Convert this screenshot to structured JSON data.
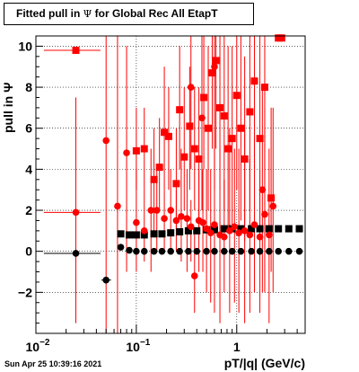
{
  "title": {
    "prefix": "Fitted pull in ",
    "symbol": "Ψ",
    "suffix": " for Global Rec All EtapT"
  },
  "timestamp": "Sun Apr 25 10:39:16 2021",
  "colors": {
    "black_series": "#000000",
    "red_series": "#ff0000",
    "frame": "#000000",
    "grid": "#000000"
  },
  "chart_data": {
    "type": "scatter",
    "title": "Fitted pull in Ψ for Global Rec All EtapT",
    "xlabel": "pT/|q| (GeV/c)",
    "ylabel": "pull in Ψ",
    "xscale": "log",
    "xlim": [
      0.01,
      4.8
    ],
    "ylim": [
      -4,
      10.5
    ],
    "grid": true,
    "x_ticks": [
      {
        "value": 0.01,
        "base": "10",
        "exp": "-2"
      },
      {
        "value": 0.1,
        "base": "10",
        "exp": "-1"
      },
      {
        "value": 1,
        "base": "1",
        "exp": ""
      }
    ],
    "y_ticks": [
      -2,
      0,
      2,
      4,
      6,
      8,
      10
    ],
    "series": [
      {
        "marker": "circle",
        "color": "#000000",
        "points": [
          {
            "x": 0.025,
            "y": -0.1,
            "ex": [
              0.012,
              0.044
            ]
          },
          {
            "x": 0.05,
            "y": -1.4,
            "ex": [
              0.045,
              0.056
            ]
          },
          {
            "x": 0.07,
            "y": 0.2
          },
          {
            "x": 0.085,
            "y": 0.05
          },
          {
            "x": 0.1,
            "y": 0.0
          },
          {
            "x": 0.12,
            "y": 0.0
          },
          {
            "x": 0.15,
            "y": 0.0
          },
          {
            "x": 0.18,
            "y": 0.0
          },
          {
            "x": 0.22,
            "y": 0.0
          },
          {
            "x": 0.27,
            "y": 0.0
          },
          {
            "x": 0.33,
            "y": 0.0
          },
          {
            "x": 0.4,
            "y": 0.0
          },
          {
            "x": 0.5,
            "y": 0.0
          },
          {
            "x": 0.6,
            "y": 0.0
          },
          {
            "x": 0.75,
            "y": 0.0
          },
          {
            "x": 0.9,
            "y": 0.0
          },
          {
            "x": 1.1,
            "y": 0.0
          },
          {
            "x": 1.4,
            "y": 0.0
          },
          {
            "x": 1.7,
            "y": 0.0
          },
          {
            "x": 2.1,
            "y": 0.0
          },
          {
            "x": 2.6,
            "y": 0.0
          },
          {
            "x": 3.3,
            "y": 0.0
          },
          {
            "x": 4.2,
            "y": 0.0
          }
        ]
      },
      {
        "marker": "square",
        "color": "#000000",
        "points": [
          {
            "x": 0.07,
            "y": 0.85
          },
          {
            "x": 0.085,
            "y": 0.8
          },
          {
            "x": 0.1,
            "y": 0.8
          },
          {
            "x": 0.12,
            "y": 0.8
          },
          {
            "x": 0.15,
            "y": 0.85
          },
          {
            "x": 0.18,
            "y": 0.85
          },
          {
            "x": 0.22,
            "y": 0.9
          },
          {
            "x": 0.27,
            "y": 0.95
          },
          {
            "x": 0.33,
            "y": 1.0
          },
          {
            "x": 0.4,
            "y": 1.0
          },
          {
            "x": 0.5,
            "y": 1.05
          },
          {
            "x": 0.6,
            "y": 1.05
          },
          {
            "x": 0.75,
            "y": 1.1
          },
          {
            "x": 0.9,
            "y": 1.1
          },
          {
            "x": 1.1,
            "y": 1.1
          },
          {
            "x": 1.4,
            "y": 1.1
          },
          {
            "x": 1.7,
            "y": 1.1
          },
          {
            "x": 2.1,
            "y": 1.1
          },
          {
            "x": 2.6,
            "y": 1.1
          },
          {
            "x": 3.3,
            "y": 1.1
          },
          {
            "x": 4.2,
            "y": 1.1
          }
        ]
      },
      {
        "marker": "circle",
        "color": "#ff0000",
        "points": [
          {
            "x": 0.025,
            "y": 1.9,
            "ey": [
              -3.5,
              7.5
            ],
            "ex": [
              0.012,
              0.044
            ]
          },
          {
            "x": 0.05,
            "y": 5.4,
            "ey": [
              -4.0,
              10.5
            ]
          },
          {
            "x": 0.065,
            "y": 2.2,
            "ey": [
              -4.0,
              10.5
            ]
          },
          {
            "x": 0.08,
            "y": 4.8,
            "ey": [
              -1.0,
              10.0
            ]
          },
          {
            "x": 0.1,
            "y": 1.4,
            "ey": [
              -1.0,
              4.0
            ]
          },
          {
            "x": 0.12,
            "y": 1.0,
            "ey": [
              -0.5,
              3.0
            ]
          },
          {
            "x": 0.14,
            "y": 2.0,
            "ey": [
              -1.0,
              5.0
            ]
          },
          {
            "x": 0.16,
            "y": 2.0,
            "ey": [
              0.0,
              4.0
            ]
          },
          {
            "x": 0.19,
            "y": 1.6,
            "ey": [
              0.0,
              3.0
            ]
          },
          {
            "x": 0.22,
            "y": 2.0,
            "ey": [
              0.0,
              4.0
            ]
          },
          {
            "x": 0.25,
            "y": 1.5,
            "ey": [
              0.0,
              3.0
            ]
          },
          {
            "x": 0.28,
            "y": 1.7,
            "ey": [
              -0.5,
              5.0
            ]
          },
          {
            "x": 0.32,
            "y": 1.6,
            "ey": [
              -1.0,
              4.0
            ]
          },
          {
            "x": 0.35,
            "y": 1.2,
            "ey": [
              -0.5,
              2.5
            ]
          },
          {
            "x": 0.38,
            "y": -1.2,
            "ey": [
              -3.0,
              1.0
            ]
          },
          {
            "x": 0.42,
            "y": 1.5,
            "ey": [
              -1.0,
              4.0
            ]
          },
          {
            "x": 0.46,
            "y": 1.4,
            "ey": [
              -1.0,
              4.0
            ]
          },
          {
            "x": 0.5,
            "y": 1.1,
            "ey": [
              -2.0,
              4.0
            ]
          },
          {
            "x": 0.55,
            "y": 0.9,
            "ey": [
              -2.5,
              4.0
            ]
          },
          {
            "x": 0.6,
            "y": 1.3,
            "ey": [
              -3.0,
              6.0
            ]
          },
          {
            "x": 0.68,
            "y": 0.8,
            "ey": [
              -3.5,
              5.0
            ]
          },
          {
            "x": 0.75,
            "y": 0.7,
            "ey": [
              -2.0,
              3.5
            ]
          },
          {
            "x": 0.85,
            "y": 1.0,
            "ey": [
              -3.0,
              6.0
            ]
          },
          {
            "x": 0.95,
            "y": 1.2,
            "ey": [
              -2.5,
              5.0
            ]
          },
          {
            "x": 1.05,
            "y": 0.9,
            "ey": [
              -3.0,
              5.0
            ]
          },
          {
            "x": 1.2,
            "y": 1.0,
            "ey": [
              -3.5,
              6.0
            ]
          },
          {
            "x": 1.35,
            "y": 0.8,
            "ey": [
              -3.0,
              4.5
            ]
          },
          {
            "x": 1.5,
            "y": 1.3,
            "ey": [
              -2.0,
              5.5
            ]
          },
          {
            "x": 1.7,
            "y": 0.7,
            "ey": [
              -3.0,
              4.0
            ]
          },
          {
            "x": 1.9,
            "y": 1.8,
            "ey": [
              -2.0,
              6.0
            ]
          },
          {
            "x": 2.1,
            "y": 0.8,
            "ey": [
              -3.5,
              5.0
            ]
          },
          {
            "x": 2.3,
            "y": 2.2,
            "ey": [
              -2.0,
              7.0
            ]
          },
          {
            "x": 0.35,
            "y": 8.0,
            "ey": [
              4.0,
              10.5
            ]
          },
          {
            "x": 0.6,
            "y": 9.0,
            "ey": [
              3.0,
              10.5
            ]
          },
          {
            "x": 0.45,
            "y": 6.5,
            "ey": [
              2.0,
              10.5
            ]
          },
          {
            "x": 1.8,
            "y": 3.0,
            "ey": [
              -2.0,
              8.0
            ]
          }
        ]
      },
      {
        "marker": "square",
        "color": "#ff0000",
        "points": [
          {
            "x": 0.025,
            "y": 9.8,
            "ex": [
              0.012,
              0.044
            ]
          },
          {
            "x": 0.1,
            "y": 4.9,
            "ey": [
              3.0,
              7.0
            ]
          },
          {
            "x": 0.12,
            "y": 5.0,
            "ey": [
              3.0,
              7.0
            ]
          },
          {
            "x": 0.15,
            "y": 3.5,
            "ey": [
              1.0,
              6.0
            ]
          },
          {
            "x": 0.17,
            "y": 4.1,
            "ey": [
              2.0,
              6.5
            ]
          },
          {
            "x": 0.19,
            "y": 5.8,
            "ey": [
              3.0,
              9.0
            ]
          },
          {
            "x": 0.21,
            "y": 5.6,
            "ey": [
              3.0,
              8.0
            ]
          },
          {
            "x": 0.25,
            "y": 3.3,
            "ey": [
              1.0,
              6.0
            ]
          },
          {
            "x": 0.27,
            "y": 6.9,
            "ey": [
              4.0,
              10.0
            ]
          },
          {
            "x": 0.3,
            "y": 4.6,
            "ey": [
              2.0,
              8.0
            ]
          },
          {
            "x": 0.34,
            "y": 6.1,
            "ey": [
              3.0,
              9.0
            ]
          },
          {
            "x": 0.38,
            "y": 5.0,
            "ey": [
              2.0,
              8.0
            ]
          },
          {
            "x": 0.42,
            "y": 4.5,
            "ey": [
              1.0,
              8.0
            ]
          },
          {
            "x": 0.47,
            "y": 7.5,
            "ey": [
              4.0,
              10.5
            ]
          },
          {
            "x": 0.52,
            "y": 6.0,
            "ey": [
              2.0,
              10.0
            ]
          },
          {
            "x": 0.57,
            "y": 8.7,
            "ey": [
              5.0,
              10.5
            ]
          },
          {
            "x": 0.62,
            "y": 9.3,
            "ey": [
              5.0,
              10.5
            ]
          },
          {
            "x": 0.68,
            "y": 7.0,
            "ey": [
              3.0,
              10.5
            ]
          },
          {
            "x": 0.75,
            "y": 6.6,
            "ey": [
              2.0,
              10.5
            ]
          },
          {
            "x": 0.82,
            "y": 5.0,
            "ey": [
              1.0,
              10.0
            ]
          },
          {
            "x": 0.9,
            "y": 5.5,
            "ey": [
              1.0,
              10.0
            ]
          },
          {
            "x": 1.0,
            "y": 7.6,
            "ey": [
              3.0,
              10.5
            ]
          },
          {
            "x": 1.1,
            "y": 6.0,
            "ey": [
              1.5,
              10.5
            ]
          },
          {
            "x": 1.2,
            "y": 4.5,
            "ey": [
              0.5,
              9.5
            ]
          },
          {
            "x": 1.35,
            "y": 6.8,
            "ey": [
              2.0,
              10.5
            ]
          },
          {
            "x": 1.5,
            "y": 8.3,
            "ey": [
              4.0,
              10.5
            ]
          },
          {
            "x": 1.7,
            "y": 5.5,
            "ey": [
              1.0,
              10.5
            ]
          },
          {
            "x": 1.9,
            "y": 8.0,
            "ey": [
              3.5,
              10.5
            ]
          },
          {
            "x": 2.2,
            "y": 2.6,
            "ey": [
              -1.0,
              7.0
            ]
          },
          {
            "x": 2.6,
            "y": 10.4
          },
          {
            "x": 2.8,
            "y": 10.4
          }
        ]
      }
    ]
  }
}
